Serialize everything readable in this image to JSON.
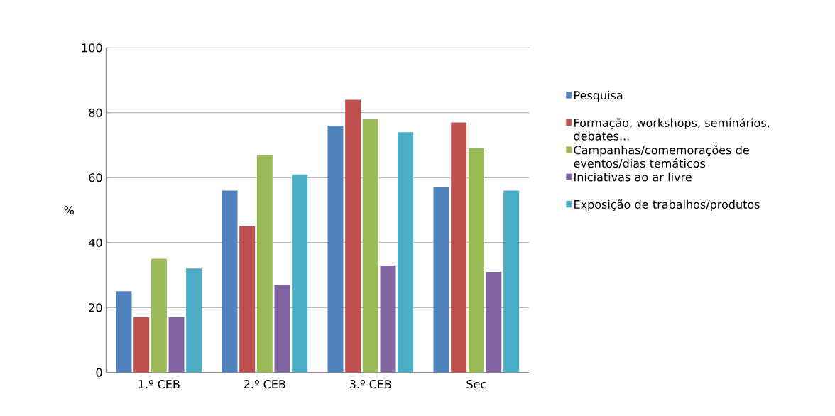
{
  "chart_data": {
    "type": "bar",
    "ylabel": "%",
    "categories": [
      "1.º CEB",
      "2.º CEB",
      "3.º CEB",
      "Sec"
    ],
    "series": [
      {
        "name": "Pesquisa",
        "color": "#4f81bd",
        "values": [
          25,
          56,
          76,
          57
        ]
      },
      {
        "name": "Formação, workshops, seminários, debates...",
        "color": "#c0504d",
        "values": [
          17,
          45,
          84,
          77
        ]
      },
      {
        "name": "Campanhas/comemorações de eventos/dias temáticos",
        "color": "#9bbb59",
        "values": [
          35,
          67,
          78,
          69
        ]
      },
      {
        "name": "Iniciativas ao ar livre",
        "color": "#8064a2",
        "values": [
          17,
          27,
          33,
          31
        ]
      },
      {
        "name": "Exposição de trabalhos/produtos",
        "color": "#4bacc6",
        "values": [
          32,
          61,
          74,
          56
        ]
      }
    ],
    "ylim": [
      0,
      100
    ],
    "yticks": [
      0,
      20,
      40,
      60,
      80,
      100
    ],
    "grid": "y",
    "legend": "right"
  }
}
